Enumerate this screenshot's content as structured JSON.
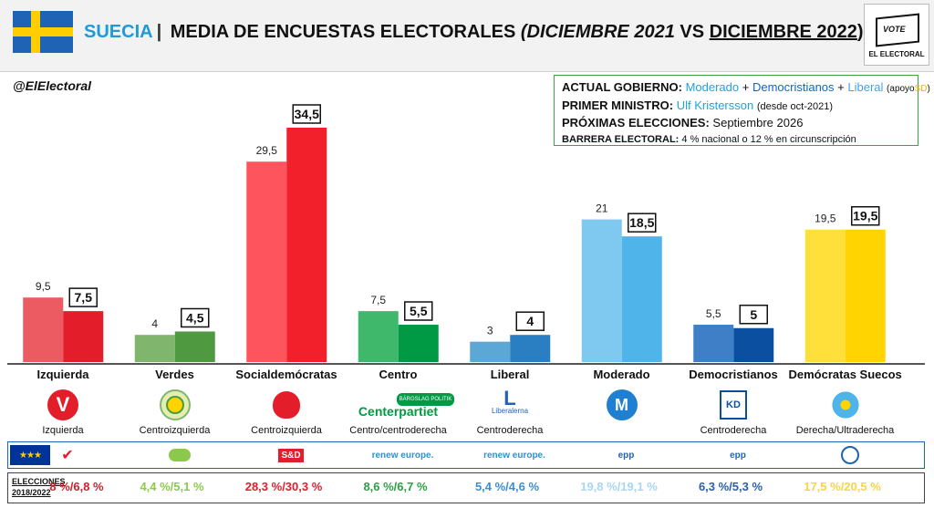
{
  "header": {
    "country": "SUECIA",
    "separator": "|",
    "title_main": "MEDIA DE ENCUESTAS ELECTORALES",
    "title_paren_open": "(",
    "date1": "DICIEMBRE 2021",
    "vs": "VS",
    "date2": "DICIEMBRE 2022",
    "title_paren_close": ")",
    "flag_colors": {
      "blue": "#1f63b5",
      "yellow": "#ffcd00"
    }
  },
  "logo": {
    "vote": "VOTE",
    "label": "EL ELECTORAL"
  },
  "handle": "@ElElectoral",
  "infobox": {
    "gov_label": "ACTUAL GOBIERNO:",
    "gov_p1": "Moderado",
    "plus1": "+",
    "gov_p2": "Democristianos",
    "plus2": "+",
    "gov_p3": "Liberal",
    "support_open": "(apoyo",
    "support_party": "SD",
    "support_close": ")",
    "pm_label": "PRIMER MINISTRO:",
    "pm_name": "Ulf Kristersson",
    "pm_since": "(desde oct-2021)",
    "next_label": "PRÓXIMAS ELECCIONES:",
    "next_value": "Septiembre 2026",
    "barrier_label": "BARRERA ELECTORAL:",
    "barrier_value": "4 % nacional o 12 % en circunscripción"
  },
  "chart_data": {
    "type": "bar",
    "categories": [
      "Izquierda",
      "Verdes",
      "Socialdemócratas",
      "Centro",
      "Liberal",
      "Moderado",
      "Democristianos",
      "Demócratas Suecos"
    ],
    "series": [
      {
        "values": [
          9.5,
          4,
          29.5,
          7.5,
          3,
          21,
          5.5,
          19.5
        ]
      },
      {
        "values": [
          7.5,
          4.5,
          34.5,
          5.5,
          4,
          18.5,
          5,
          19.5
        ]
      }
    ],
    "labels_prev": [
      "9,5",
      "4",
      "29,5",
      "7,5",
      "3",
      "21",
      "5,5",
      "19,5"
    ],
    "labels_curr": [
      "7,5",
      "4,5",
      "34,5",
      "5,5",
      "4",
      "18,5",
      "5",
      "19,5"
    ],
    "colors_prev": [
      "#ec5a62",
      "#7fb56c",
      "#fd545d",
      "#3fb86b",
      "#5ba7d6",
      "#7fc8f0",
      "#3f7fc8",
      "#ffe03a"
    ],
    "colors_curr": [
      "#e41d2b",
      "#4f9a40",
      "#f2202a",
      "#009a44",
      "#2a7fc2",
      "#4fb4ea",
      "#0b50a0",
      "#ffd400"
    ],
    "ylim": [
      0,
      36
    ]
  },
  "ideology": [
    "Izquierda",
    "Centroizquierda",
    "Centroizquierda",
    "Centro/centroderecha",
    "Centroderecha",
    "",
    "Centroderecha",
    "Derecha/Ultraderecha"
  ],
  "party_logos": {
    "izquierda": "V",
    "centro": "Centerpartiet",
    "centro_badge": "BÄRGSLAG POLITIK",
    "liberal_letter": "L",
    "liberal_name": "Liberalerna",
    "moderado": "M",
    "kd": "KD"
  },
  "eu_groups": [
    "",
    "",
    "S&D",
    "renew europe.",
    "renew europe.",
    "epp",
    "epp",
    ""
  ],
  "elections": {
    "title_line1": "ELECCIONES",
    "title_line2": "2018/2022",
    "values": [
      "8 %/6,8 %",
      "4,4 %/5,1 %",
      "28,3 %/30,3 %",
      "8,6 %/6,7 %",
      "5,4 %/4,6 %",
      "19,8 %/19,1 %",
      "6,3 %/5,3 %",
      "17,5 %/20,5 %"
    ],
    "colors": [
      "#d0202b",
      "#8cc84b",
      "#e41d2b",
      "#2e9e46",
      "#3c8ed0",
      "#a9d6f5",
      "#2b5fa8",
      "#f6d54a"
    ]
  }
}
